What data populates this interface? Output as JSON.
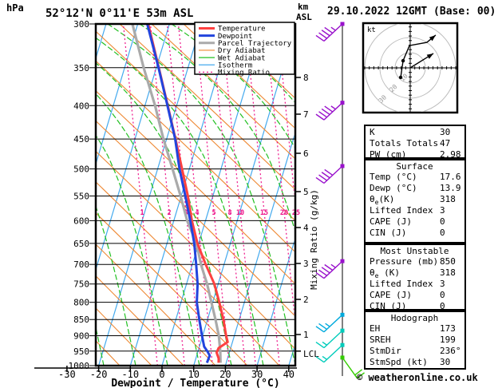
{
  "header": {
    "pressure_unit": "hPa",
    "station": "52°12'N 0°11'E 53m ASL",
    "height_unit_line1": "km",
    "height_unit_line2": "ASL",
    "datetime": "29.10.2022 12GMT (Base: 00)"
  },
  "axes": {
    "pressure_ticks": [
      300,
      350,
      400,
      450,
      500,
      550,
      600,
      650,
      700,
      750,
      800,
      850,
      900,
      950,
      1000
    ],
    "temp_ticks": [
      -30,
      -20,
      -10,
      0,
      10,
      20,
      30,
      40
    ],
    "xaxis_title": "Dewpoint / Temperature (°C)",
    "height_ticks": [
      "1",
      "2",
      "3",
      "4",
      "5",
      "6",
      "7",
      "8"
    ],
    "lcl_label": "LCL",
    "mixing_axis_label": "Mixing Ratio (g/kg)",
    "mixing_ratio_values": [
      "1",
      "2",
      "3",
      "4",
      "5",
      "8",
      "10",
      "15",
      "20",
      "25"
    ]
  },
  "legend": [
    {
      "label": "Temperature",
      "color": "#FF4040",
      "width": 3,
      "dash": ""
    },
    {
      "label": "Dewpoint",
      "color": "#2244DD",
      "width": 3,
      "dash": ""
    },
    {
      "label": "Parcel Trajectory",
      "color": "#AAAAAA",
      "width": 3,
      "dash": ""
    },
    {
      "label": "Dry Adiabat",
      "color": "#EE8833",
      "width": 1.2,
      "dash": ""
    },
    {
      "label": "Wet Adiabat",
      "color": "#22C022",
      "width": 1.2,
      "dash": ""
    },
    {
      "label": "Isotherm",
      "color": "#44AAEE",
      "width": 1.2,
      "dash": ""
    },
    {
      "label": "Mixing Ratio",
      "color": "#EE1188",
      "width": 1.2,
      "dash": "2 3"
    }
  ],
  "hodograph_inset": {
    "unit_label": "kt",
    "ring_labels": [
      "10",
      "20",
      "30"
    ],
    "rings_kt": [
      10,
      20,
      30
    ],
    "trace_kt": [
      [
        -6.3,
        -6.3
      ],
      [
        -4.7,
        4.7
      ],
      [
        -0.5,
        14.7
      ],
      [
        11,
        16.8
      ],
      [
        16.8,
        21.6
      ]
    ],
    "storm_kt": [
      15.3,
      9.5
    ]
  },
  "panels": {
    "indices": {
      "rows": [
        {
          "label": "K",
          "value": "30"
        },
        {
          "label": "Totals Totals",
          "value": "47"
        },
        {
          "label": "PW (cm)",
          "value": "2.98"
        }
      ]
    },
    "surface": {
      "title": "Surface",
      "rows": [
        {
          "label": "Temp (°C)",
          "value": "17.6"
        },
        {
          "label": "Dewp (°C)",
          "value": "13.9"
        },
        {
          "l1": "θ",
          "l2": "e",
          "l3": "(K)",
          "value": "318"
        },
        {
          "label": "Lifted Index",
          "value": "3"
        },
        {
          "label": "CAPE (J)",
          "value": "0"
        },
        {
          "label": "CIN (J)",
          "value": "0"
        }
      ]
    },
    "most_unstable": {
      "title": "Most Unstable",
      "rows": [
        {
          "label": "Pressure (mb)",
          "value": "850"
        },
        {
          "l1": "θ",
          "l2": "e",
          "l3": " (K)",
          "value": "318"
        },
        {
          "label": "Lifted Index",
          "value": "3"
        },
        {
          "label": "CAPE (J)",
          "value": "0"
        },
        {
          "label": "CIN (J)",
          "value": "0"
        }
      ]
    },
    "hodograph": {
      "title": "Hodograph",
      "rows": [
        {
          "label": "EH",
          "value": "173"
        },
        {
          "label": "SREH",
          "value": "199"
        },
        {
          "label": "StmDir",
          "value": "236°"
        },
        {
          "label": "StmSpd (kt)",
          "value": "30"
        }
      ]
    }
  },
  "footer": "© weatheronline.co.uk",
  "chart_data": {
    "type": "skewt_sounding",
    "pressure_axis_hpa": [
      300,
      1000
    ],
    "temp_axis_c": [
      -30,
      40
    ],
    "skew": "isotherms slope up-right, log-pressure vertical",
    "temperature_c": [
      [
        300,
        -36.7
      ],
      [
        350,
        -29.2
      ],
      [
        400,
        -22.8
      ],
      [
        450,
        -17.2
      ],
      [
        500,
        -12.3
      ],
      [
        550,
        -7.9
      ],
      [
        600,
        -4.3
      ],
      [
        650,
        -0.4
      ],
      [
        700,
        4.2
      ],
      [
        750,
        8.8
      ],
      [
        800,
        12.1
      ],
      [
        850,
        15.0
      ],
      [
        900,
        17.4
      ],
      [
        920,
        18.5
      ],
      [
        940,
        16.2
      ],
      [
        955,
        16.0
      ],
      [
        975,
        17.2
      ],
      [
        990,
        17.6
      ]
    ],
    "dewpoint_c": [
      [
        300,
        -37.0
      ],
      [
        350,
        -29.3
      ],
      [
        400,
        -22.9
      ],
      [
        450,
        -17.3
      ],
      [
        500,
        -13.1
      ],
      [
        550,
        -8.7
      ],
      [
        600,
        -4.8
      ],
      [
        650,
        -1.4
      ],
      [
        700,
        1.2
      ],
      [
        750,
        3.5
      ],
      [
        800,
        5.0
      ],
      [
        850,
        7.4
      ],
      [
        900,
        9.8
      ],
      [
        935,
        11.5
      ],
      [
        950,
        12.9
      ],
      [
        965,
        14.1
      ],
      [
        990,
        13.9
      ]
    ],
    "parcel_c": [
      [
        300,
        -41.7
      ],
      [
        350,
        -34.0
      ],
      [
        400,
        -26.8
      ],
      [
        450,
        -21.0
      ],
      [
        500,
        -15.3
      ],
      [
        550,
        -10.2
      ],
      [
        600,
        -5.8
      ],
      [
        650,
        -0.7
      ],
      [
        700,
        2.7
      ],
      [
        750,
        6.5
      ],
      [
        800,
        9.6
      ],
      [
        850,
        12.5
      ],
      [
        900,
        15.1
      ],
      [
        950,
        17.0
      ],
      [
        990,
        18.2
      ]
    ],
    "wind_barbs": [
      {
        "p": 300,
        "color": "#9911CC",
        "full": 4,
        "half": 1,
        "flip": false
      },
      {
        "p": 396,
        "color": "#9911CC",
        "full": 4,
        "half": 1,
        "flip": false
      },
      {
        "p": 495,
        "color": "#9911CC",
        "full": 4,
        "half": 0,
        "flip": false
      },
      {
        "p": 692,
        "color": "#9911CC",
        "full": 4,
        "half": 1,
        "flip": false
      },
      {
        "p": 836,
        "color": "#00AADD",
        "full": 2,
        "half": 1,
        "flip": false
      },
      {
        "p": 884,
        "color": "#00CCBB",
        "full": 1,
        "half": 1,
        "flip": false
      },
      {
        "p": 930,
        "color": "#00CCBB",
        "full": 1,
        "half": 1,
        "flip": false
      },
      {
        "p": 972,
        "color": "#33CC00",
        "full": 2,
        "half": 0,
        "flip": true
      }
    ],
    "lcl_pressure_hpa": 950
  }
}
